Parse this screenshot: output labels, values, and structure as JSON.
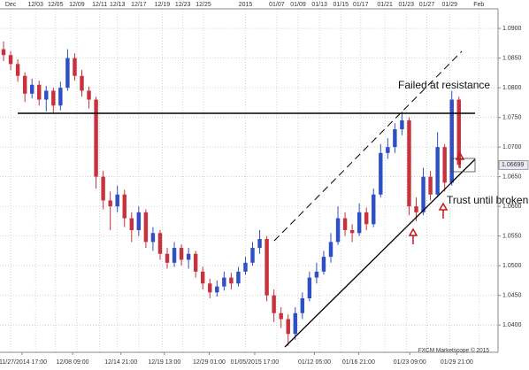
{
  "chart_data": {
    "type": "candlestick",
    "up_color": "#2f4fc4",
    "down_color": "#c8323c",
    "open": [
      1.0865,
      1.0855,
      1.084,
      1.082,
      1.079,
      1.0805,
      1.078,
      1.0795,
      1.077,
      1.08,
      1.085,
      1.082,
      1.0795,
      1.078,
      1.065,
      1.061,
      1.06,
      1.062,
      1.058,
      1.056,
      1.059,
      1.054,
      1.0555,
      1.052,
      1.0505,
      1.053,
      1.051,
      1.052,
      1.049,
      1.047,
      1.0455,
      1.0465,
      1.048,
      1.047,
      1.049,
      1.0505,
      1.053,
      1.0545,
      1.045,
      1.042,
      1.041,
      1.0385,
      1.042,
      1.0445,
      1.048,
      1.049,
      1.0515,
      1.054,
      1.058,
      1.056,
      1.0555,
      1.059,
      1.057,
      1.062,
      1.069,
      1.07,
      1.073,
      1.0745,
      1.06,
      1.059,
      1.065,
      1.062,
      1.07,
      1.064,
      1.078
    ],
    "high": [
      1.0878,
      1.0862,
      1.0848,
      1.0826,
      1.0815,
      1.0812,
      1.0803,
      1.08,
      1.081,
      1.0865,
      1.0858,
      1.083,
      1.0802,
      1.0785,
      1.066,
      1.0625,
      1.0635,
      1.0628,
      1.059,
      1.06,
      1.0595,
      1.0565,
      1.056,
      1.053,
      1.054,
      1.0536,
      1.053,
      1.0525,
      1.0498,
      1.0478,
      1.0475,
      1.049,
      1.0488,
      1.0498,
      1.0515,
      1.054,
      1.056,
      1.055,
      1.046,
      1.043,
      1.0418,
      1.043,
      1.0455,
      1.049,
      1.0505,
      1.0525,
      1.0555,
      1.06,
      1.059,
      1.057,
      1.0605,
      1.0598,
      1.063,
      1.0705,
      1.0715,
      1.074,
      1.076,
      1.075,
      1.0615,
      1.0665,
      1.066,
      1.0725,
      1.0705,
      1.0795,
      1.0785
    ],
    "low": [
      1.0845,
      1.083,
      1.081,
      1.0776,
      1.0782,
      1.077,
      1.076,
      1.0758,
      1.0762,
      1.0795,
      1.0812,
      1.0785,
      1.0765,
      1.063,
      1.0595,
      1.056,
      1.059,
      1.0565,
      1.054,
      1.055,
      1.053,
      1.0525,
      1.051,
      1.0495,
      1.0498,
      1.05,
      1.0495,
      1.048,
      1.046,
      1.0445,
      1.0448,
      1.0458,
      1.046,
      1.0465,
      1.0485,
      1.05,
      1.052,
      1.044,
      1.0405,
      1.0395,
      1.0365,
      1.0375,
      1.041,
      1.044,
      1.047,
      1.0485,
      1.0505,
      1.0535,
      1.055,
      1.054,
      1.055,
      1.056,
      1.0565,
      1.0615,
      1.068,
      1.069,
      1.072,
      1.0585,
      1.0575,
      1.0585,
      1.061,
      1.0615,
      1.0625,
      1.0635,
      1.0665
    ],
    "close": [
      1.0855,
      1.084,
      1.082,
      1.079,
      1.0805,
      1.078,
      1.0795,
      1.077,
      1.08,
      1.085,
      1.082,
      1.0795,
      1.078,
      1.065,
      1.061,
      1.06,
      1.062,
      1.058,
      1.056,
      1.059,
      1.054,
      1.0555,
      1.052,
      1.0505,
      1.053,
      1.051,
      1.052,
      1.049,
      1.047,
      1.0455,
      1.0465,
      1.048,
      1.047,
      1.049,
      1.0505,
      1.053,
      1.0545,
      1.045,
      1.042,
      1.041,
      1.0385,
      1.042,
      1.0445,
      1.048,
      1.049,
      1.0515,
      1.054,
      1.058,
      1.056,
      1.0555,
      1.059,
      1.057,
      1.062,
      1.069,
      1.07,
      1.073,
      1.0745,
      1.06,
      1.059,
      1.065,
      1.062,
      1.07,
      1.064,
      1.078,
      1.067
    ],
    "xlim": [
      0,
      70
    ],
    "ylim": [
      1.0354,
      1.0933
    ],
    "yticks": [
      {
        "value": 1.04,
        "label": "1.0400"
      },
      {
        "value": 1.045,
        "label": "1.0450"
      },
      {
        "value": 1.05,
        "label": "1.0500"
      },
      {
        "value": 1.055,
        "label": "1.0550"
      },
      {
        "value": 1.06,
        "label": "1.0600"
      },
      {
        "value": 1.065,
        "label": "1.0650"
      },
      {
        "value": 1.07,
        "label": "1.0700"
      },
      {
        "value": 1.075,
        "label": "1.0750"
      },
      {
        "value": 1.08,
        "label": "1.0800"
      },
      {
        "value": 1.085,
        "label": "1.0850"
      },
      {
        "value": 1.09,
        "label": "1.0900"
      }
    ],
    "xticks_top": [
      {
        "value": 1.5,
        "label": "Dec"
      },
      {
        "value": 5,
        "label": "12/03"
      },
      {
        "value": 7.8,
        "label": "12/05"
      },
      {
        "value": 10.8,
        "label": "12/09"
      },
      {
        "value": 14,
        "label": "12/11"
      },
      {
        "value": 16.5,
        "label": "12/13"
      },
      {
        "value": 19.5,
        "label": "12/17"
      },
      {
        "value": 22.8,
        "label": "12/19"
      },
      {
        "value": 25.7,
        "label": "12/23"
      },
      {
        "value": 28.6,
        "label": "12/25"
      },
      {
        "value": 34.5,
        "label": "2015"
      },
      {
        "value": 38.9,
        "label": "01/07"
      },
      {
        "value": 41.9,
        "label": "01/09"
      },
      {
        "value": 44.9,
        "label": "01/13"
      },
      {
        "value": 47.9,
        "label": "01/15"
      },
      {
        "value": 50.7,
        "label": "01/17"
      },
      {
        "value": 54.1,
        "label": "01/21"
      },
      {
        "value": 57.1,
        "label": "01/23"
      },
      {
        "value": 60,
        "label": "01/27"
      },
      {
        "value": 63.2,
        "label": "01/29"
      },
      {
        "value": 67.3,
        "label": "Feb"
      }
    ],
    "xticks": [
      {
        "value": 3.1,
        "label": "11/27/2014 17:00"
      },
      {
        "value": 10.2,
        "label": "12/08 09:00"
      },
      {
        "value": 17,
        "label": "12/14 21:00"
      },
      {
        "value": 23.1,
        "label": "12/19 13:00"
      },
      {
        "value": 29.4,
        "label": "12/29 01:00"
      },
      {
        "value": 35.8,
        "label": "01/05/2015 17:00"
      },
      {
        "value": 44.2,
        "label": "01/12 05:00"
      },
      {
        "value": 50.4,
        "label": "01/16 21:00"
      },
      {
        "value": 57.6,
        "label": "01/23 09:00"
      },
      {
        "value": 64.2,
        "label": "01/29 21:00"
      }
    ],
    "last_price": 1.06699,
    "grid": true,
    "annotations": [
      "Failed at resistance",
      "Trust until broken."
    ],
    "watermark": "FXCM Marketscope © 2015"
  }
}
